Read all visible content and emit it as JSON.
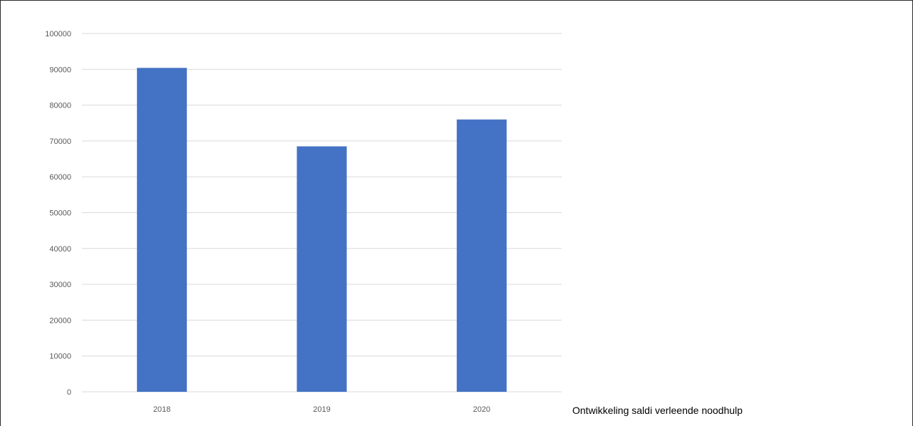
{
  "chart_data": {
    "type": "bar",
    "categories": [
      "2018",
      "2019",
      "2020"
    ],
    "values": [
      90400,
      68500,
      76000
    ],
    "ylim": [
      0,
      100000
    ],
    "yticks": [
      0,
      10000,
      20000,
      30000,
      40000,
      50000,
      60000,
      70000,
      80000,
      90000,
      100000
    ],
    "title": "",
    "xlabel": "",
    "ylabel": "",
    "grid": true,
    "bar_color": "#4472c4",
    "grid_color": "#d9d9d9"
  },
  "caption": "Ontwikkeling saldi verleende noodhulp"
}
